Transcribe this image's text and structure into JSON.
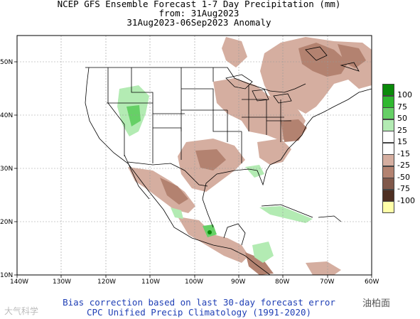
{
  "title": {
    "line1": "NCEP GFS Ensemble Forecast 1-7 Day Precipitation (mm)",
    "line2": "from: 31Aug2023",
    "line3": "31Aug2023-06Sep2023 Anomaly"
  },
  "axes": {
    "lon_labels": [
      "140W",
      "130W",
      "120W",
      "110W",
      "100W",
      "90W",
      "80W",
      "70W",
      "60W"
    ],
    "lat_labels": [
      "50N",
      "40N",
      "30N",
      "20N",
      "10N"
    ]
  },
  "legend": [
    {
      "label": "100",
      "color": "#0a8a0a"
    },
    {
      "label": "75",
      "color": "#2fb82f"
    },
    {
      "label": "50",
      "color": "#66d066"
    },
    {
      "label": "25",
      "color": "#b3ebb3"
    },
    {
      "label": "15",
      "color": "#ffffff"
    },
    {
      "label": "-15",
      "color": "#ffffff"
    },
    {
      "label": "-25",
      "color": "#d5aea0"
    },
    {
      "label": "-50",
      "color": "#b38270"
    },
    {
      "label": "-75",
      "color": "#80584a"
    },
    {
      "label": "-100",
      "color": "#4e2f22"
    },
    {
      "label": "",
      "color": "#ffffa8"
    }
  ],
  "footer": {
    "line1": "Bias correction based on last 30-day forecast error",
    "line2": "CPC Unified Precip Climatology (1991-2020)"
  },
  "watermark": {
    "left": "大气科学",
    "right": "油柏面"
  },
  "colors": {
    "dry_light": "#d5aea0",
    "dry_mid": "#b38270",
    "dry_dark": "#80584a",
    "wet_light": "#b3ebb3",
    "wet_mid": "#66d066"
  }
}
